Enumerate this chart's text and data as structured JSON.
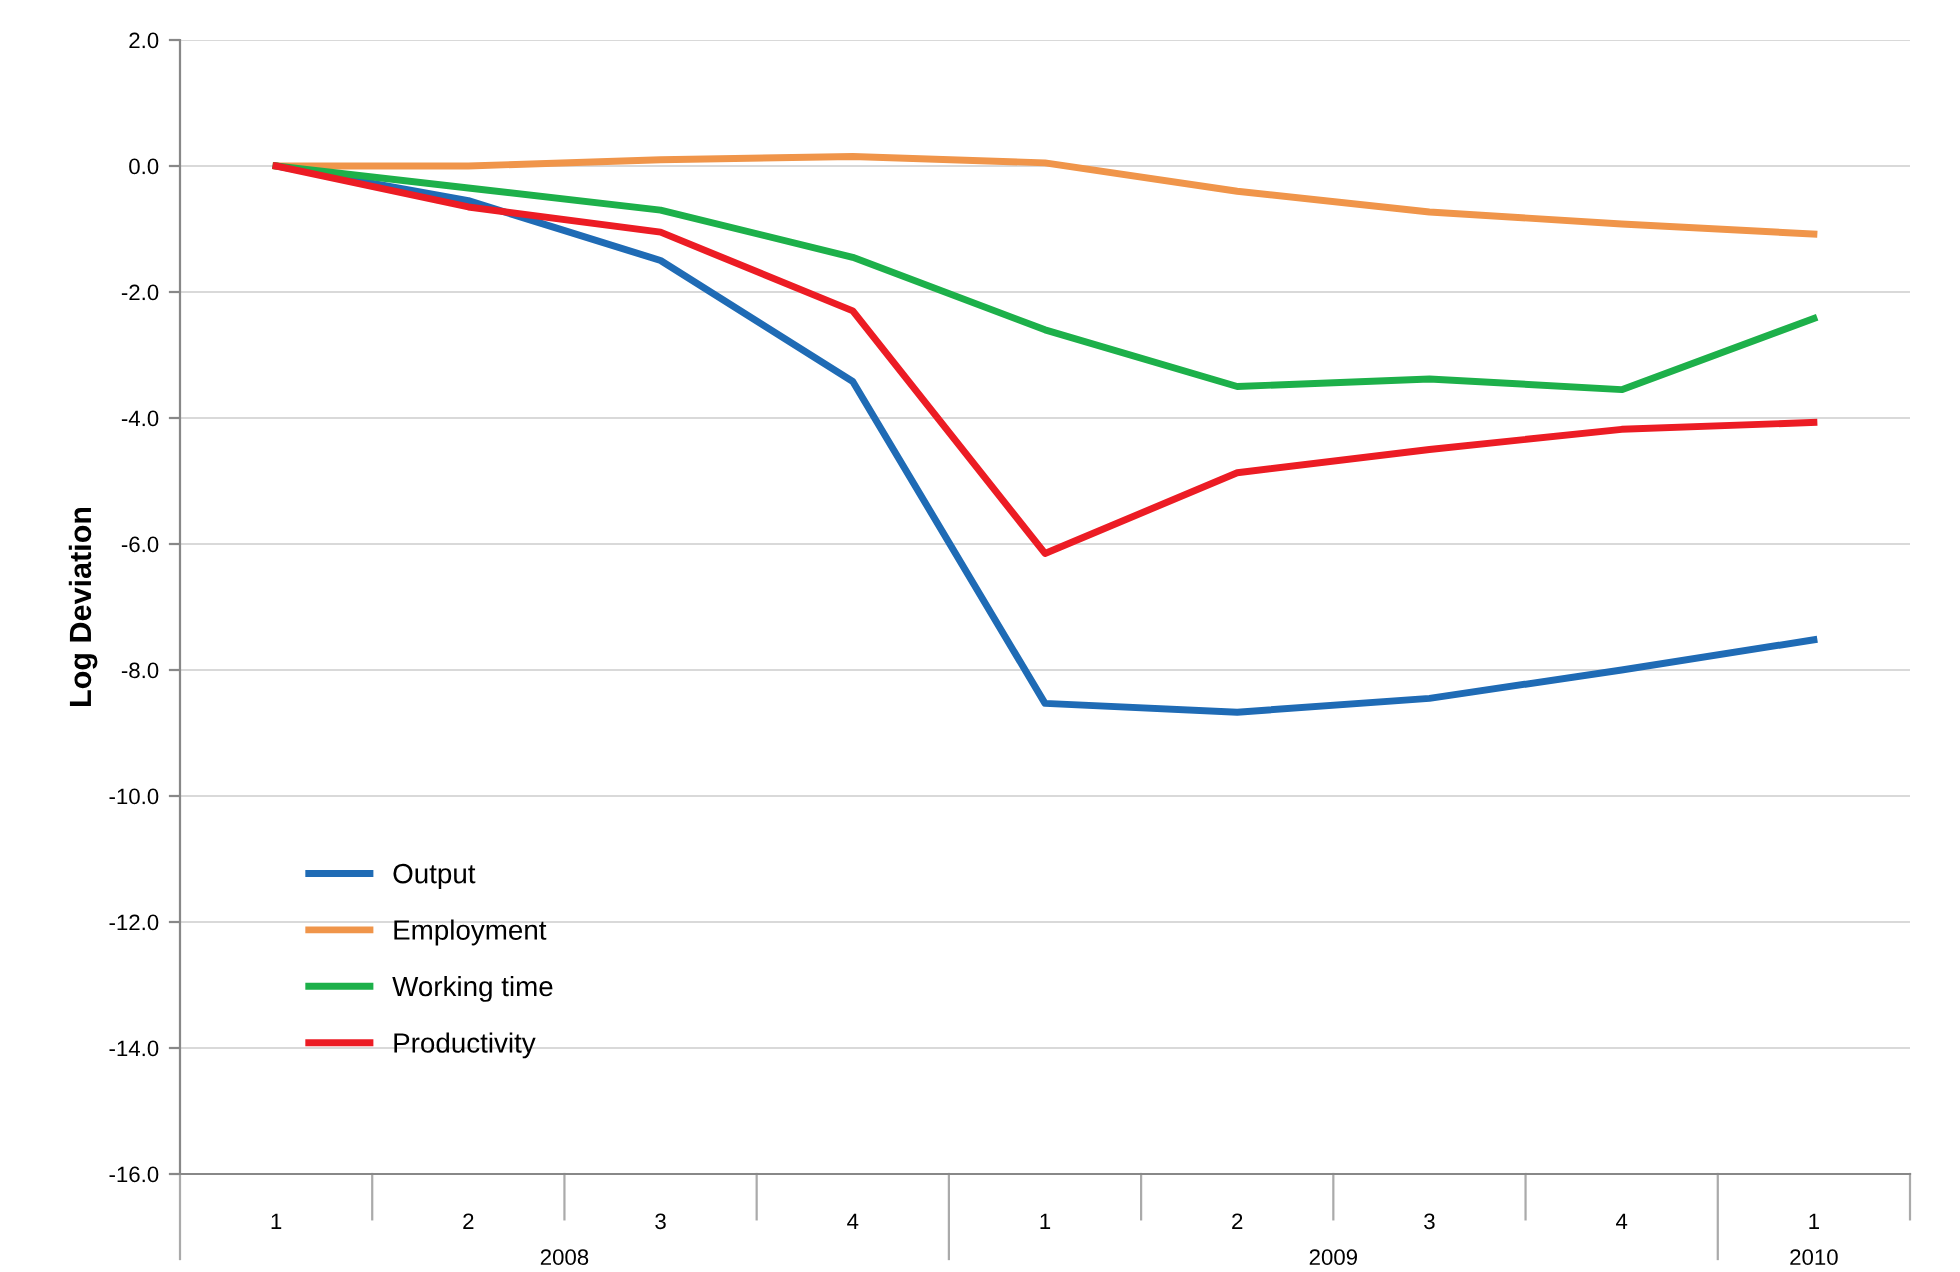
{
  "chart_data": {
    "type": "line",
    "ylabel": "Log Deviation",
    "categories": [
      "1",
      "2",
      "3",
      "4",
      "1",
      "2",
      "3",
      "4",
      "1"
    ],
    "series": [
      {
        "name": "Output",
        "color": "#1f6bb5",
        "values": [
          0,
          -0.55,
          -1.5,
          -3.42,
          -8.53,
          -8.67,
          -8.45,
          -8.0,
          -7.52
        ]
      },
      {
        "name": "Employment",
        "color": "#f0954a",
        "values": [
          0,
          0,
          0.1,
          0.15,
          0.05,
          -0.4,
          -0.73,
          -0.92,
          -1.08
        ]
      },
      {
        "name": "Working time",
        "color": "#1db04a",
        "values": [
          0,
          -0.35,
          -0.7,
          -1.45,
          -2.6,
          -3.5,
          -3.38,
          -3.55,
          -2.42
        ]
      },
      {
        "name": "Productivity",
        "color": "#ec1c24",
        "values": [
          0,
          -0.65,
          -1.05,
          -2.3,
          -6.15,
          -4.87,
          -4.5,
          -4.18,
          -4.07
        ]
      }
    ],
    "annotations": [
      "2008",
      "2009",
      "2010"
    ],
    "ylim": [
      -16,
      2
    ],
    "yticks": [
      {
        "value": 2,
        "label": "2.0"
      },
      {
        "value": 0,
        "label": "0.0"
      },
      {
        "value": -2,
        "label": "-2.0"
      },
      {
        "value": -4,
        "label": "-4.0"
      },
      {
        "value": -6,
        "label": "-6.0"
      },
      {
        "value": -8,
        "label": "-8.0"
      },
      {
        "value": -10,
        "label": "-10.0"
      },
      {
        "value": -12,
        "label": "-12.0"
      },
      {
        "value": -14,
        "label": "-14.0"
      },
      {
        "value": -16,
        "label": "-16.0"
      }
    ],
    "grid": "y",
    "legend": "bottom left",
    "marker": "none",
    "line_style": "solid"
  }
}
